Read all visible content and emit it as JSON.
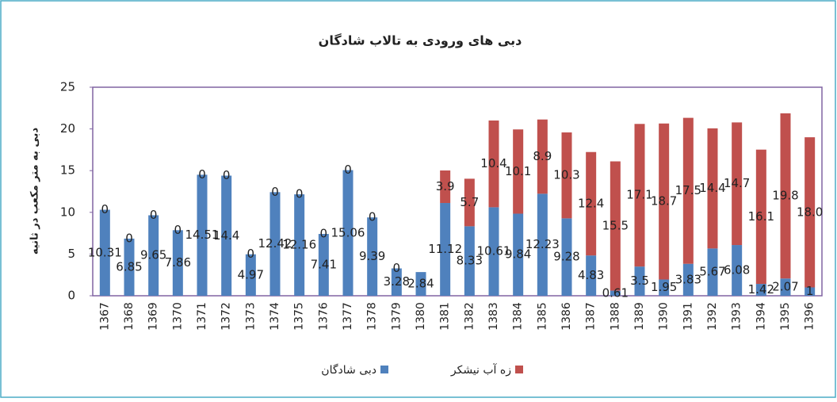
{
  "chart_data": {
    "type": "stacked_bar",
    "title": "دبی های ورودی به تالاب شادگان",
    "y_label": "دبی به متر مکعب در ثانیه",
    "categories": [
      "1367",
      "1368",
      "1369",
      "1370",
      "1371",
      "1372",
      "1373",
      "1374",
      "1375",
      "1376",
      "1377",
      "1378",
      "1379",
      "1380",
      "1381",
      "1382",
      "1383",
      "1384",
      "1385",
      "1386",
      "1387",
      "1388",
      "1389",
      "1390",
      "1391",
      "1392",
      "1393",
      "1394",
      "1395",
      "1396"
    ],
    "series": [
      {
        "name": "دبی شادگان",
        "color": "#4f81bd",
        "values": [
          10.31,
          6.85,
          9.65,
          7.86,
          14.51,
          14.4,
          4.97,
          12.42,
          12.16,
          7.41,
          15.06,
          9.39,
          3.28,
          2.84,
          11.12,
          8.33,
          10.61,
          9.84,
          12.23,
          9.28,
          4.83,
          0.61,
          3.5,
          1.95,
          3.83,
          5.67,
          6.08,
          1.42,
          2.07,
          1
        ]
      },
      {
        "name": "زه آب نیشکر",
        "color": "#c0504d",
        "values": [
          0,
          0,
          0,
          0,
          0,
          0,
          0,
          0,
          0,
          0,
          0,
          0,
          0,
          null,
          3.9,
          5.7,
          10.4,
          10.1,
          8.9,
          10.3,
          12.4,
          15.5,
          17.1,
          18.7,
          17.5,
          14.4,
          14.7,
          16.1,
          19.8,
          18
        ],
        "value_labels": [
          "0",
          "0",
          "0",
          "0",
          "0",
          "0",
          "0",
          "0",
          "0",
          "0",
          "0",
          "0",
          "0",
          null,
          "3.9",
          "5.7",
          "10.4",
          "10.1",
          "8.9",
          "10.3",
          "12.4",
          "15.5",
          "17.1",
          "18.7",
          "17.5",
          "14.4",
          "14.7",
          "16.1",
          "19.8",
          "18.0"
        ]
      }
    ],
    "ylim": [
      0,
      25
    ],
    "yticks": [
      0,
      5,
      10,
      15,
      20,
      25
    ],
    "grid": false,
    "legend": "bottom"
  }
}
